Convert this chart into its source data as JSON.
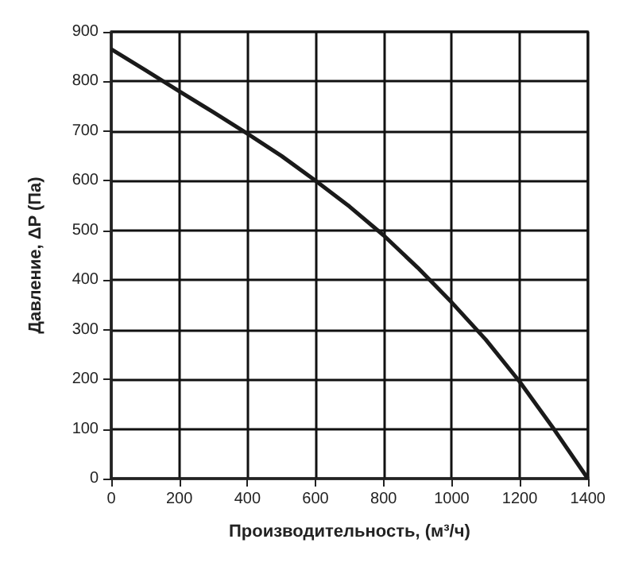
{
  "chart_data": {
    "type": "line",
    "xlabel": "Производительность, (м³/ч)",
    "ylabel": "Давление, ΔP (Па)",
    "x": [
      0,
      100,
      200,
      300,
      400,
      500,
      600,
      700,
      800,
      900,
      1000,
      1100,
      1200,
      1300,
      1400
    ],
    "series": [
      {
        "color": "#1a1a1a",
        "values": [
          865,
          823,
          780,
          738,
          695,
          650,
          600,
          548,
          490,
          425,
          355,
          280,
          195,
          100,
          0
        ]
      }
    ],
    "xlim": [
      0,
      1400
    ],
    "xticks": [
      0,
      200,
      400,
      600,
      800,
      1000,
      1200,
      1400
    ],
    "ylim": [
      0,
      900
    ],
    "yticks": [
      0,
      100,
      200,
      300,
      400,
      500,
      600,
      700,
      800,
      900
    ],
    "grid": true,
    "marker": "none",
    "line_style": "solid"
  }
}
